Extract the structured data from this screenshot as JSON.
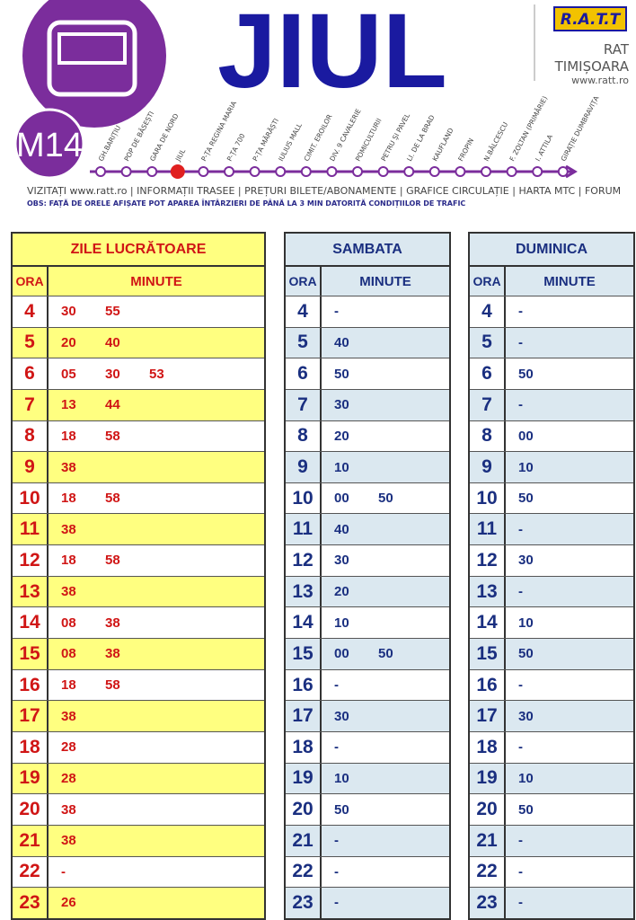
{
  "header": {
    "title": "JIUL",
    "line": "M14",
    "logo": "R.A.T.T",
    "company": "RAT",
    "city": "TIMIȘOARA",
    "site": "www.ratt.ro",
    "stops": [
      "GH.BARIȚIU",
      "POP DE BĂSEȘTI",
      "GARA DE NORD",
      "JIUL",
      "P-ȚA REGINA MARIA",
      "P-ȚA 700",
      "P-ȚA MĂRĂȘTI",
      "IULIUS MALL",
      "CIMIT. EROILOR",
      "DIV. 9 CAVALERIE",
      "POMICULTURII",
      "PETRU ȘI PAVEL",
      "LI. DE LA BRAD",
      "KAUFLAND",
      "FROPIN",
      "N.BĂLCESCU",
      "F. ZOLTAN (PRIMĂRIE)",
      "I. ATTILA",
      "GIRAȚIE DUMBRAVIȚA"
    ],
    "links": [
      "VIZITAȚI www.ratt.ro",
      "INFORMAȚII TRASEE",
      "PREȚURI BILETE/ABONAMENTE",
      "GRAFICE CIRCULAȚIE",
      "HARTA MTC",
      "FORUM"
    ],
    "note": "OBS: FAȚĂ DE ORELE AFIȘATE POT APAREA ÎNTÂRZIERI DE PÂNĂ LA 3 MIN DATORITĂ CONDIȚIILOR DE TRAFIC"
  },
  "tables": [
    {
      "title": "ZILE LUCRĂTOARE",
      "ora": "ORA",
      "minute": "MINUTE",
      "rows": [
        {
          "hour": "4",
          "minutes": [
            "30",
            "55"
          ]
        },
        {
          "hour": "5",
          "minutes": [
            "20",
            "40"
          ]
        },
        {
          "hour": "6",
          "minutes": [
            "05",
            "30",
            "53"
          ]
        },
        {
          "hour": "7",
          "minutes": [
            "13",
            "44"
          ]
        },
        {
          "hour": "8",
          "minutes": [
            "18",
            "58"
          ]
        },
        {
          "hour": "9",
          "minutes": [
            "38"
          ]
        },
        {
          "hour": "10",
          "minutes": [
            "18",
            "58"
          ]
        },
        {
          "hour": "11",
          "minutes": [
            "38"
          ]
        },
        {
          "hour": "12",
          "minutes": [
            "18",
            "58"
          ]
        },
        {
          "hour": "13",
          "minutes": [
            "38"
          ]
        },
        {
          "hour": "14",
          "minutes": [
            "08",
            "38"
          ]
        },
        {
          "hour": "15",
          "minutes": [
            "08",
            "38"
          ]
        },
        {
          "hour": "16",
          "minutes": [
            "18",
            "58"
          ]
        },
        {
          "hour": "17",
          "minutes": [
            "38"
          ]
        },
        {
          "hour": "18",
          "minutes": [
            "28"
          ]
        },
        {
          "hour": "19",
          "minutes": [
            "28"
          ]
        },
        {
          "hour": "20",
          "minutes": [
            "38"
          ]
        },
        {
          "hour": "21",
          "minutes": [
            "38"
          ]
        },
        {
          "hour": "22",
          "minutes": [
            "-"
          ]
        },
        {
          "hour": "23",
          "minutes": [
            "26"
          ]
        }
      ]
    },
    {
      "title": "SAMBATA",
      "ora": "ORA",
      "minute": "MINUTE",
      "rows": [
        {
          "hour": "4",
          "minutes": [
            "-"
          ]
        },
        {
          "hour": "5",
          "minutes": [
            "40"
          ]
        },
        {
          "hour": "6",
          "minutes": [
            "50"
          ]
        },
        {
          "hour": "7",
          "minutes": [
            "30"
          ]
        },
        {
          "hour": "8",
          "minutes": [
            "20"
          ]
        },
        {
          "hour": "9",
          "minutes": [
            "10"
          ]
        },
        {
          "hour": "10",
          "minutes": [
            "00",
            "50"
          ]
        },
        {
          "hour": "11",
          "minutes": [
            "40"
          ]
        },
        {
          "hour": "12",
          "minutes": [
            "30"
          ]
        },
        {
          "hour": "13",
          "minutes": [
            "20"
          ]
        },
        {
          "hour": "14",
          "minutes": [
            "10"
          ]
        },
        {
          "hour": "15",
          "minutes": [
            "00",
            "50"
          ]
        },
        {
          "hour": "16",
          "minutes": [
            "-"
          ]
        },
        {
          "hour": "17",
          "minutes": [
            "30"
          ]
        },
        {
          "hour": "18",
          "minutes": [
            "-"
          ]
        },
        {
          "hour": "19",
          "minutes": [
            "10"
          ]
        },
        {
          "hour": "20",
          "minutes": [
            "50"
          ]
        },
        {
          "hour": "21",
          "minutes": [
            "-"
          ]
        },
        {
          "hour": "22",
          "minutes": [
            "-"
          ]
        },
        {
          "hour": "23",
          "minutes": [
            "-"
          ]
        }
      ]
    },
    {
      "title": "DUMINICA",
      "ora": "ORA",
      "minute": "MINUTE",
      "rows": [
        {
          "hour": "4",
          "minutes": [
            "-"
          ]
        },
        {
          "hour": "5",
          "minutes": [
            "-"
          ]
        },
        {
          "hour": "6",
          "minutes": [
            "50"
          ]
        },
        {
          "hour": "7",
          "minutes": [
            "-"
          ]
        },
        {
          "hour": "8",
          "minutes": [
            "00"
          ]
        },
        {
          "hour": "9",
          "minutes": [
            "10"
          ]
        },
        {
          "hour": "10",
          "minutes": [
            "50"
          ]
        },
        {
          "hour": "11",
          "minutes": [
            "-"
          ]
        },
        {
          "hour": "12",
          "minutes": [
            "30"
          ]
        },
        {
          "hour": "13",
          "minutes": [
            "-"
          ]
        },
        {
          "hour": "14",
          "minutes": [
            "10"
          ]
        },
        {
          "hour": "15",
          "minutes": [
            "50"
          ]
        },
        {
          "hour": "16",
          "minutes": [
            "-"
          ]
        },
        {
          "hour": "17",
          "minutes": [
            "30"
          ]
        },
        {
          "hour": "18",
          "minutes": [
            "-"
          ]
        },
        {
          "hour": "19",
          "minutes": [
            "10"
          ]
        },
        {
          "hour": "20",
          "minutes": [
            "50"
          ]
        },
        {
          "hour": "21",
          "minutes": [
            "-"
          ]
        },
        {
          "hour": "22",
          "minutes": [
            "-"
          ]
        },
        {
          "hour": "23",
          "minutes": [
            "-"
          ]
        }
      ]
    }
  ]
}
